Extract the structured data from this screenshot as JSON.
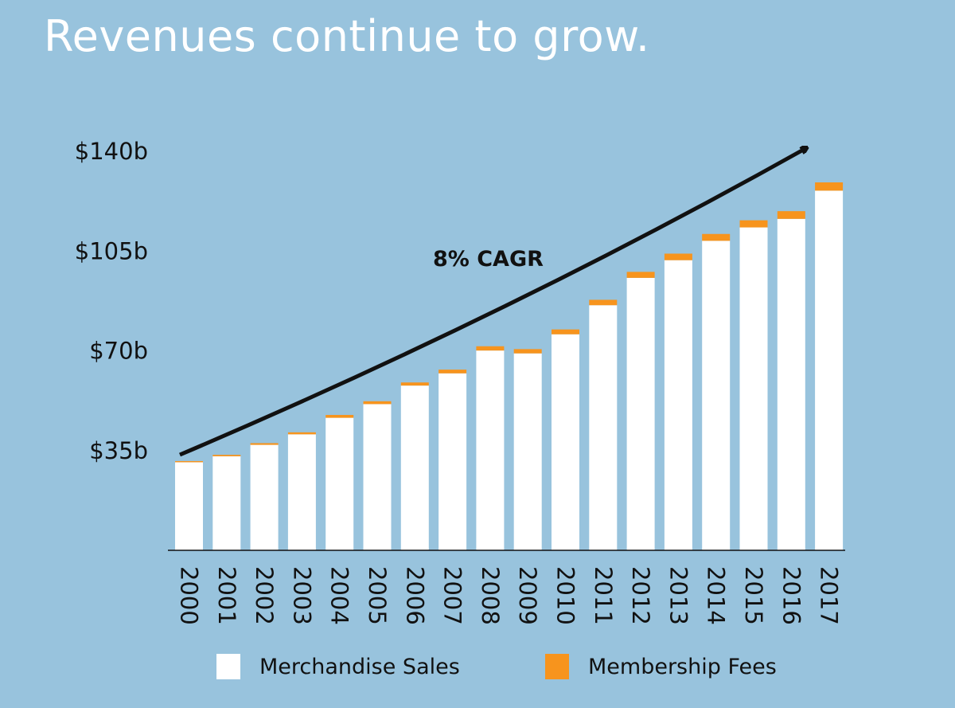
{
  "title": "Revenues continue to grow.",
  "chart_data": {
    "type": "bar",
    "stacked": true,
    "categories": [
      "2000",
      "2001",
      "2002",
      "2003",
      "2004",
      "2005",
      "2006",
      "2007",
      "2008",
      "2009",
      "2010",
      "2011",
      "2012",
      "2013",
      "2014",
      "2015",
      "2016",
      "2017"
    ],
    "series": [
      {
        "name": "Merchandise Sales",
        "color": "#FFFFFF",
        "values": [
          30.9,
          33.0,
          37.0,
          40.7,
          46.5,
          51.3,
          57.8,
          62.1,
          70.1,
          69.1,
          75.8,
          86.0,
          95.6,
          101.8,
          108.6,
          113.3,
          116.3,
          126.2
        ]
      },
      {
        "name": "Membership Fees",
        "color": "#F7941D",
        "values": [
          0.4,
          0.5,
          0.6,
          0.7,
          1.0,
          1.0,
          1.1,
          1.3,
          1.5,
          1.5,
          1.7,
          1.9,
          2.1,
          2.3,
          2.4,
          2.5,
          2.7,
          2.9
        ]
      }
    ],
    "ylim": [
      0,
      140
    ],
    "yticks": [
      35,
      70,
      105,
      140
    ],
    "ytick_labels": [
      "$35b",
      "$70b",
      "$105b",
      "$140b"
    ],
    "annotation": "8% CAGR",
    "legend_position": "bottom"
  }
}
